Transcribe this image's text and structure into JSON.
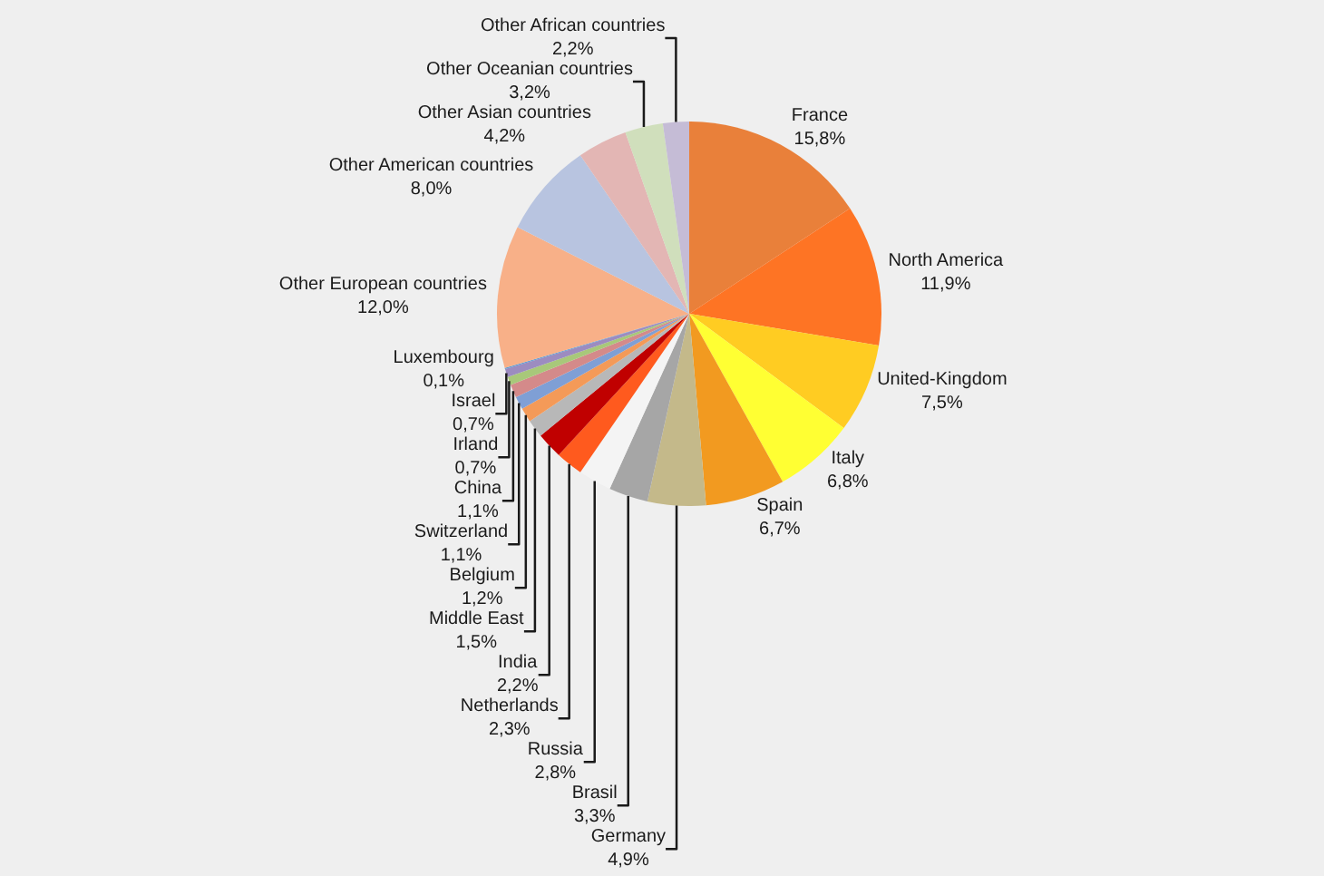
{
  "chart_data": {
    "type": "pie",
    "categories": [
      "France",
      "North America",
      "United-Kingdom",
      "Italy",
      "Spain",
      "Germany",
      "Brasil",
      "Russia",
      "Netherlands",
      "India",
      "Middle East",
      "Belgium",
      "Switzerland",
      "China",
      "Irland",
      "Israel",
      "Luxembourg",
      "Other European countries",
      "Other American countries",
      "Other Asian countries",
      "Other Oceanian countries",
      "Other African countries"
    ],
    "values": [
      15.8,
      11.9,
      7.5,
      6.8,
      6.7,
      4.9,
      3.3,
      2.8,
      2.3,
      2.2,
      1.5,
      1.2,
      1.1,
      1.1,
      0.7,
      0.7,
      0.1,
      12.0,
      8.0,
      4.2,
      3.2,
      2.2
    ],
    "value_labels": [
      "15,8%",
      "11,9%",
      "7,5%",
      "6,8%",
      "6,7%",
      "4,9%",
      "3,3%",
      "2,8%",
      "2,3%",
      "2,2%",
      "1,5%",
      "1,2%",
      "1,1%",
      "1,1%",
      "0,7%",
      "0,7%",
      "0,1%",
      "12,0%",
      "8,0%",
      "4,2%",
      "3,2%",
      "2,2%"
    ],
    "colors": [
      "#e9803a",
      "#fe7424",
      "#ffcc22",
      "#ffff33",
      "#f29a20",
      "#c4b98a",
      "#a6a6a6",
      "#f4f4f4",
      "#ff5a1e",
      "#c00000",
      "#b8b8b8",
      "#f49a58",
      "#7f9fd5",
      "#d48a8a",
      "#a8c87a",
      "#9c8cc0",
      "#5b9bd5",
      "#f8b088",
      "#b8c4e0",
      "#e3b6b4",
      "#d0dfbc",
      "#c5bcd6"
    ]
  }
}
